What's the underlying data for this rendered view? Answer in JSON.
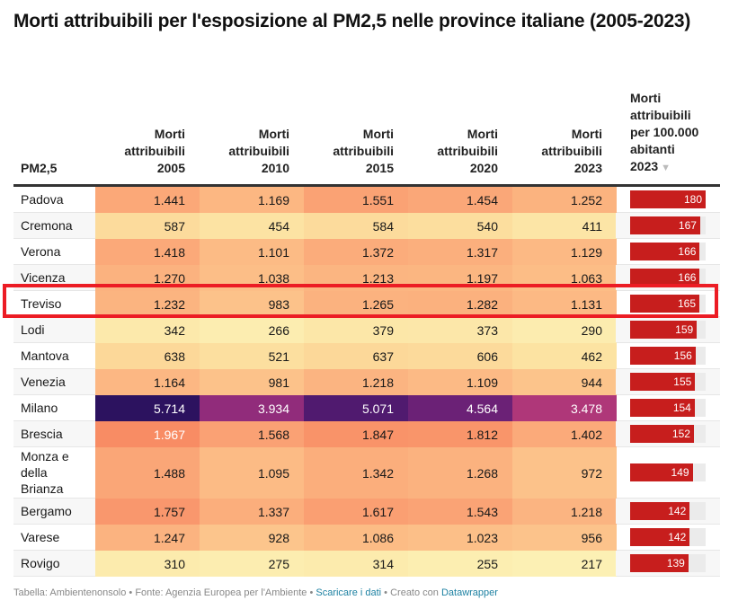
{
  "title": "Morti attribuibili per l'esposizione al PM2,5 nelle province italiane (2005-2023)",
  "footer": {
    "prefix": "Tabella: Ambientenonsolo • Fonte: Agenzia Europea per l'Ambiente • ",
    "download_link": "Scaricare i dati",
    "middle": " • Creato con ",
    "dw_link": "Datawrapper"
  },
  "highlight": {
    "row": "Treviso",
    "color": "#ec1c24"
  },
  "chart_data": {
    "type": "table",
    "title": "Morti attribuibili per l'esposizione al PM2,5 nelle province italiane (2005-2023)",
    "columns": [
      {
        "key": "name",
        "label": [
          "",
          "",
          "",
          "",
          "PM2,5"
        ]
      },
      {
        "key": "y2005",
        "label": [
          "",
          "",
          "Morti",
          "attribuibili",
          "2005"
        ]
      },
      {
        "key": "y2010",
        "label": [
          "",
          "",
          "Morti",
          "attribuibili",
          "2010"
        ]
      },
      {
        "key": "y2015",
        "label": [
          "",
          "",
          "Morti",
          "attribuibili",
          "2015"
        ]
      },
      {
        "key": "y2020",
        "label": [
          "",
          "",
          "Morti",
          "attribuibili",
          "2020"
        ]
      },
      {
        "key": "y2023",
        "label": [
          "",
          "",
          "Morti",
          "attribuibili",
          "2023"
        ]
      },
      {
        "key": "rate",
        "label": [
          "Morti",
          "attribuibili",
          "per 100.000",
          "abitanti",
          "2023"
        ],
        "sort": "descending",
        "sort_icon": "▼"
      }
    ],
    "bar_max": 180,
    "bar_color": "#c71e1d",
    "heatmap_range": [
      217,
      5714
    ],
    "rows": [
      {
        "name": "Padova",
        "values": [
          "1.441",
          "1.169",
          "1.551",
          "1.454",
          "1.252"
        ],
        "raw": [
          1441,
          1169,
          1551,
          1454,
          1252
        ],
        "rate": 180
      },
      {
        "name": "Cremona",
        "values": [
          "587",
          "454",
          "584",
          "540",
          "411"
        ],
        "raw": [
          587,
          454,
          584,
          540,
          411
        ],
        "rate": 167
      },
      {
        "name": "Verona",
        "values": [
          "1.418",
          "1.101",
          "1.372",
          "1.317",
          "1.129"
        ],
        "raw": [
          1418,
          1101,
          1372,
          1317,
          1129
        ],
        "rate": 166
      },
      {
        "name": "Vicenza",
        "values": [
          "1.270",
          "1.038",
          "1.213",
          "1.197",
          "1.063"
        ],
        "raw": [
          1270,
          1038,
          1213,
          1197,
          1063
        ],
        "rate": 166
      },
      {
        "name": "Treviso",
        "values": [
          "1.232",
          "983",
          "1.265",
          "1.282",
          "1.131"
        ],
        "raw": [
          1232,
          983,
          1265,
          1282,
          1131
        ],
        "rate": 165
      },
      {
        "name": "Lodi",
        "values": [
          "342",
          "266",
          "379",
          "373",
          "290"
        ],
        "raw": [
          342,
          266,
          379,
          373,
          290
        ],
        "rate": 159
      },
      {
        "name": "Mantova",
        "values": [
          "638",
          "521",
          "637",
          "606",
          "462"
        ],
        "raw": [
          638,
          521,
          637,
          606,
          462
        ],
        "rate": 156
      },
      {
        "name": "Venezia",
        "values": [
          "1.164",
          "981",
          "1.218",
          "1.109",
          "944"
        ],
        "raw": [
          1164,
          981,
          1218,
          1109,
          944
        ],
        "rate": 155
      },
      {
        "name": "Milano",
        "values": [
          "5.714",
          "3.934",
          "5.071",
          "4.564",
          "3.478"
        ],
        "raw": [
          5714,
          3934,
          5071,
          4564,
          3478
        ],
        "rate": 154
      },
      {
        "name": "Brescia",
        "values": [
          "1.967",
          "1.568",
          "1.847",
          "1.812",
          "1.402"
        ],
        "raw": [
          1967,
          1568,
          1847,
          1812,
          1402
        ],
        "rate": 152
      },
      {
        "name": "Monza e della Brianza",
        "values": [
          "1.488",
          "1.095",
          "1.342",
          "1.268",
          "972"
        ],
        "raw": [
          1488,
          1095,
          1342,
          1268,
          972
        ],
        "rate": 149
      },
      {
        "name": "Bergamo",
        "values": [
          "1.757",
          "1.337",
          "1.617",
          "1.543",
          "1.218"
        ],
        "raw": [
          1757,
          1337,
          1617,
          1543,
          1218
        ],
        "rate": 142
      },
      {
        "name": "Varese",
        "values": [
          "1.247",
          "928",
          "1.086",
          "1.023",
          "956"
        ],
        "raw": [
          1247,
          928,
          1086,
          1023,
          956
        ],
        "rate": 142
      },
      {
        "name": "Rovigo",
        "values": [
          "310",
          "275",
          "314",
          "255",
          "217"
        ],
        "raw": [
          310,
          275,
          314,
          255,
          217
        ],
        "rate": 139
      }
    ]
  }
}
